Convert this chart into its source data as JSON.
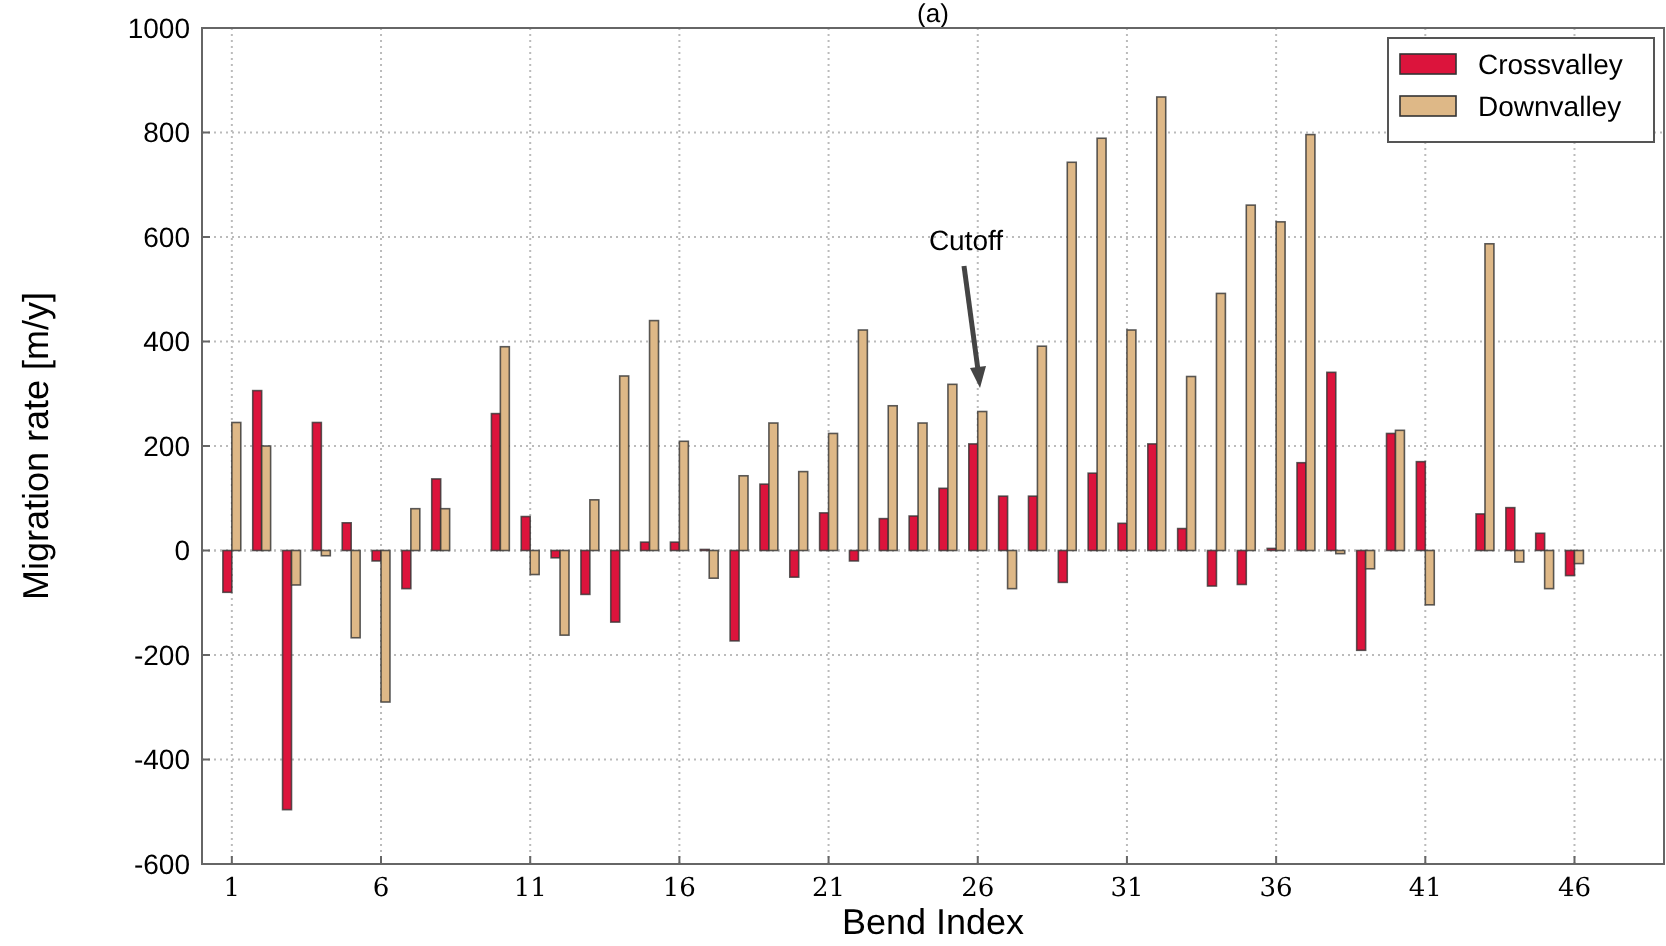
{
  "chart_data": {
    "type": "bar",
    "title": "(a)",
    "xlabel": "Bend Index",
    "ylabel": "Migration rate [m/y]",
    "x": [
      1,
      2,
      3,
      4,
      5,
      6,
      7,
      8,
      10,
      11,
      12,
      13,
      14,
      15,
      16,
      17,
      18,
      19,
      20,
      21,
      22,
      23,
      24,
      25,
      26,
      27,
      28,
      29,
      30,
      31,
      32,
      33,
      34,
      35,
      36,
      37,
      38,
      39,
      40,
      41,
      43,
      44,
      45,
      46
    ],
    "series": [
      {
        "name": "Crossvalley",
        "color": "#dc143c",
        "values": [
          -80,
          306,
          -496,
          245,
          53,
          -20,
          -73,
          137,
          262,
          65,
          -14,
          -84,
          -137,
          16,
          16,
          2,
          -173,
          127,
          -51,
          72,
          -20,
          61,
          66,
          119,
          204,
          104,
          104,
          -61,
          148,
          52,
          204,
          42,
          -68,
          -65,
          4,
          168,
          341,
          -191,
          224,
          170,
          70,
          82,
          33,
          -48
        ]
      },
      {
        "name": "Downvalley",
        "color": "#deb887",
        "values": [
          245,
          200,
          -66,
          -10,
          -167,
          -290,
          80,
          80,
          390,
          -46,
          -162,
          97,
          334,
          440,
          209,
          -53,
          143,
          244,
          151,
          224,
          422,
          277,
          244,
          318,
          266,
          -73,
          391,
          743,
          789,
          422,
          868,
          333,
          492,
          661,
          629,
          796,
          -6,
          -35,
          230,
          -104,
          587,
          -22,
          -73,
          -25
        ]
      }
    ],
    "xlim": [
      0,
      49
    ],
    "xticks": [
      1,
      6,
      11,
      16,
      21,
      26,
      31,
      36,
      41,
      46
    ],
    "ylim": [
      -600,
      1000
    ],
    "yticks": [
      -600,
      -400,
      -200,
      0,
      200,
      400,
      600,
      800,
      1000
    ],
    "grid": true,
    "legend": "top right",
    "annotations": [
      "Cutoff"
    ]
  }
}
